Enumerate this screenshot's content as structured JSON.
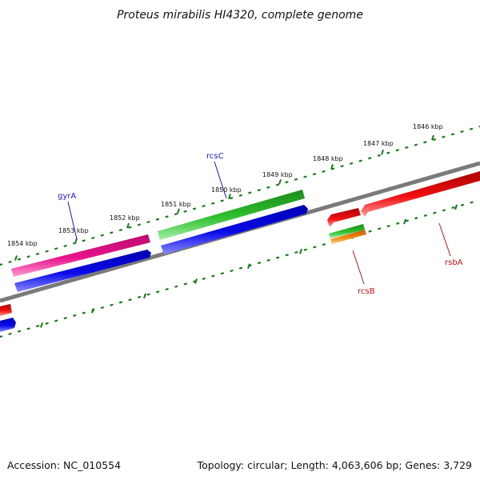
{
  "title": "Proteus mirabilis HI4320, complete genome",
  "footer": {
    "accession": "Accession: NC_010554",
    "summary": "Topology: circular; Length: 4,063,606 bp; Genes: 3,729"
  },
  "ticks": [
    "1846 kbp",
    "1847 kbp",
    "1848 kbp",
    "1849 kbp",
    "1850 kbp",
    "1851 kbp",
    "1852 kbp",
    "1853 kbp",
    "1854 kbp"
  ],
  "genes": {
    "gyrA": "gyrA",
    "rcsC": "rcsC",
    "rcsB": "rcsB",
    "rsbA": "rsbA"
  },
  "colors": {
    "backbone": "#7a7a7a",
    "tick_dots": "#1a7a1a",
    "pink": "#e8148c",
    "blue": "#0a0ae0",
    "green": "#28b428",
    "red": "#e01010",
    "orange": "#f08010",
    "label_blue": "#1a1ad0",
    "label_red": "#d01010"
  }
}
